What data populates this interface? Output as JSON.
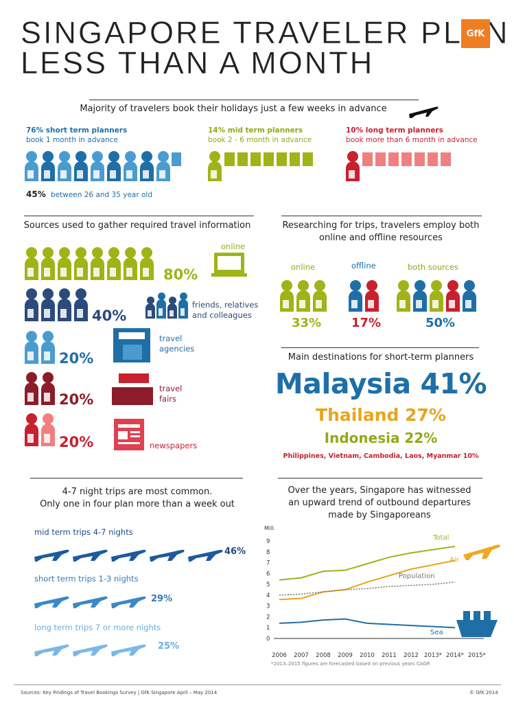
{
  "header": {
    "title_line1": "SINGAPORE TRAVELER PLAN",
    "title_line2": "LESS THAN A MONTH",
    "logo_text": "GfK"
  },
  "colors": {
    "blue": "#1f6fa6",
    "light_blue": "#4a9ccf",
    "lime": "#a0b317",
    "red": "#c8202f",
    "pink": "#f08080",
    "navy": "#2c4a7c",
    "orange": "#e8a51e",
    "sea_blue": "#1f6fa6"
  },
  "booking": {
    "heading": "Majority of travelers book their holidays just a few weeks in advance",
    "short": {
      "title": "76% short term planners",
      "sub": "book 1 month in advance"
    },
    "mid": {
      "title": "14% mid term planners",
      "sub": "book 2 - 6 month in advance"
    },
    "long": {
      "title": "10% long term planners",
      "sub": "book more than 6 month in advance"
    },
    "age_pct": "45%",
    "age_text": "between 26 and 35 year old"
  },
  "sources": {
    "heading": "Sources used to gather required travel information",
    "rows": [
      {
        "pct": "80%",
        "label": "online"
      },
      {
        "pct": "40%",
        "label": "friends, relatives and colleagues"
      },
      {
        "pct": "20%",
        "label": "travel agencies"
      },
      {
        "pct": "20%",
        "label": "travel fairs"
      },
      {
        "pct": "20%",
        "label": "newspapers"
      }
    ]
  },
  "research": {
    "heading_line1": "Researching for trips, travelers employ both",
    "heading_line2": "online and offline resources",
    "groups": [
      {
        "label": "online",
        "pct": "33%"
      },
      {
        "label": "offline",
        "pct": "17%"
      },
      {
        "label": "both sources",
        "pct": "50%"
      }
    ]
  },
  "destinations": {
    "heading": "Main destinations for short-term planners",
    "malaysia": "Malaysia 41%",
    "thailand": "Thailand 27%",
    "indonesia": "Indonesia 22%",
    "others": "Philippines, Vietnam, Cambodia, Laos, Myanmar 10%"
  },
  "trips": {
    "heading_line1": "4-7 night trips are most common.",
    "heading_line2": "Only one in four plan more than a week out",
    "rows": [
      {
        "label": "mid term trips 4-7 nights",
        "pct": "46%"
      },
      {
        "label": "short term trips 1-3 nights",
        "pct": "29%"
      },
      {
        "label": "long term trips 7 or more nights",
        "pct": "25%"
      }
    ]
  },
  "departures": {
    "heading_line1": "Over the years, Singapore has witnessed",
    "heading_line2": "an upward trend of outbound departures",
    "heading_line3": "made by Singaporeans",
    "footnote": "*2013–2015 figures are forecasted based on previous years CAGR"
  },
  "chart_data": {
    "type": "line",
    "ylabel": "Mill.",
    "ylim": [
      0,
      9
    ],
    "yticks": [
      "0",
      "1",
      "2",
      "3",
      "4",
      "5",
      "6",
      "7",
      "8",
      "9"
    ],
    "categories": [
      "2006",
      "2007",
      "2008",
      "2009",
      "2010",
      "2011",
      "2012",
      "2013*",
      "2014*",
      "2015*"
    ],
    "series": [
      {
        "name": "Total",
        "color": "#a0b317",
        "dash": false,
        "values": [
          5.4,
          5.6,
          6.2,
          6.3,
          6.9,
          7.5,
          7.9,
          8.2,
          8.5,
          null
        ]
      },
      {
        "name": "Air",
        "color": "#e8a51e",
        "dash": false,
        "values": [
          3.6,
          3.7,
          4.3,
          4.5,
          5.2,
          5.8,
          6.4,
          6.8,
          7.2,
          null
        ]
      },
      {
        "name": "Population",
        "color": "#777777",
        "dash": true,
        "values": [
          4.0,
          4.1,
          4.3,
          4.5,
          4.6,
          4.8,
          4.9,
          5.0,
          5.2,
          null
        ]
      },
      {
        "name": "Sea",
        "color": "#1f6fa6",
        "dash": false,
        "values": [
          1.4,
          1.5,
          1.7,
          1.8,
          1.4,
          1.3,
          1.2,
          1.1,
          1.0,
          null
        ]
      }
    ]
  },
  "footer": {
    "sources": "Sources: Key Findings of Travel Bookings Survey | GfK Singapore April – May 2014",
    "copyright": "© GfK 2014"
  }
}
